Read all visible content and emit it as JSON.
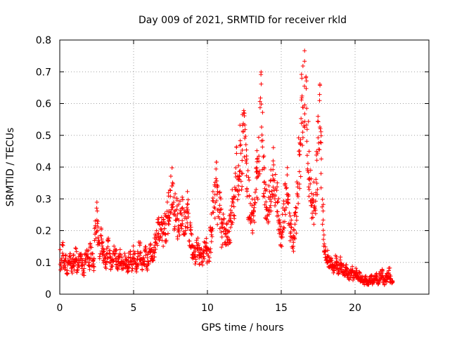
{
  "chart_data": {
    "type": "scatter",
    "title": "Day 009 of 2021, SRMTID for receiver rkld",
    "xlabel": "GPS time / hours",
    "ylabel": "SRMTID / TECUs",
    "xlim": [
      0,
      25
    ],
    "ylim": [
      0,
      0.8
    ],
    "x_ticks": [
      "0",
      "5",
      "10",
      "15",
      "20"
    ],
    "y_ticks": [
      "0",
      "0.1",
      "0.2",
      "0.3",
      "0.4",
      "0.5",
      "0.6",
      "0.7",
      "0.8"
    ],
    "x_tick_values": [
      0,
      5,
      10,
      15,
      20
    ],
    "y_tick_values": [
      0,
      0.1,
      0.2,
      0.3,
      0.4,
      0.5,
      0.6,
      0.7,
      0.8
    ],
    "grid": true,
    "marker": "+",
    "color": "#ff0000",
    "series": [
      {
        "name": "SRMTID",
        "x_step": 0.1,
        "x_start": 0.0,
        "y": [
          0.12,
          0.1,
          0.14,
          0.09,
          0.11,
          0.08,
          0.1,
          0.12,
          0.09,
          0.11,
          0.1,
          0.13,
          0.09,
          0.11,
          0.12,
          0.1,
          0.08,
          0.11,
          0.13,
          0.12,
          0.1,
          0.14,
          0.12,
          0.1,
          0.22,
          0.25,
          0.2,
          0.15,
          0.18,
          0.14,
          0.12,
          0.11,
          0.13,
          0.15,
          0.12,
          0.1,
          0.11,
          0.13,
          0.12,
          0.1,
          0.11,
          0.12,
          0.1,
          0.09,
          0.11,
          0.1,
          0.09,
          0.11,
          0.12,
          0.1,
          0.13,
          0.11,
          0.09,
          0.12,
          0.14,
          0.12,
          0.1,
          0.11,
          0.13,
          0.1,
          0.12,
          0.15,
          0.13,
          0.12,
          0.16,
          0.18,
          0.2,
          0.22,
          0.19,
          0.21,
          0.2,
          0.23,
          0.22,
          0.25,
          0.28,
          0.32,
          0.36,
          0.3,
          0.27,
          0.26,
          0.22,
          0.25,
          0.27,
          0.26,
          0.24,
          0.25,
          0.3,
          0.28,
          0.2,
          0.18,
          0.15,
          0.14,
          0.13,
          0.15,
          0.14,
          0.12,
          0.13,
          0.12,
          0.14,
          0.15,
          0.13,
          0.14,
          0.18,
          0.22,
          0.28,
          0.32,
          0.38,
          0.3,
          0.28,
          0.26,
          0.2,
          0.22,
          0.18,
          0.19,
          0.2,
          0.22,
          0.24,
          0.28,
          0.32,
          0.36,
          0.4,
          0.38,
          0.46,
          0.42,
          0.48,
          0.52,
          0.46,
          0.38,
          0.32,
          0.28,
          0.26,
          0.25,
          0.3,
          0.36,
          0.4,
          0.48,
          0.6,
          0.5,
          0.38,
          0.32,
          0.3,
          0.28,
          0.3,
          0.34,
          0.4,
          0.42,
          0.32,
          0.3,
          0.26,
          0.22,
          0.2,
          0.24,
          0.26,
          0.3,
          0.34,
          0.28,
          0.22,
          0.2,
          0.18,
          0.22,
          0.24,
          0.32,
          0.42,
          0.48,
          0.6,
          0.64,
          0.66,
          0.6,
          0.5,
          0.4,
          0.34,
          0.32,
          0.3,
          0.34,
          0.4,
          0.48,
          0.56,
          0.44,
          0.26,
          0.16,
          0.13,
          0.12,
          0.11,
          0.1,
          0.1,
          0.09,
          0.1,
          0.11,
          0.09,
          0.08,
          0.1,
          0.09,
          0.08,
          0.07,
          0.08,
          0.07,
          0.06,
          0.07,
          0.08,
          0.06,
          0.07,
          0.07,
          0.06,
          0.06,
          0.05,
          0.05,
          0.04,
          0.05,
          0.04,
          0.04,
          0.05,
          0.05,
          0.04,
          0.05,
          0.06,
          0.05,
          0.04,
          0.06,
          0.07,
          0.05,
          0.04,
          0.05,
          0.06,
          0.07,
          0.05,
          0.04
        ]
      }
    ]
  }
}
